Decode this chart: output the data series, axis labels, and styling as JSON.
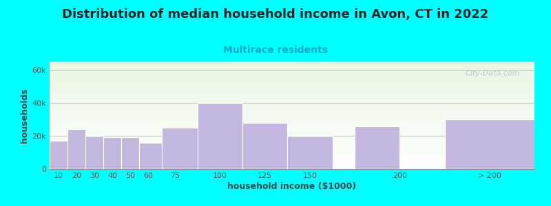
{
  "title": "Distribution of median household income in Avon, CT in 2022",
  "subtitle": "Multirace residents",
  "xlabel": "household income ($1000)",
  "ylabel": "households",
  "background_color": "#00FFFF",
  "plot_bg_gradient_top": "#e8f5e2",
  "plot_bg_gradient_bottom": "#ffffff",
  "bar_color": "#c5b8e0",
  "bar_edgecolor": "#ffffff",
  "categories": [
    "10",
    "20",
    "30",
    "40",
    "50",
    "60",
    "75",
    "100",
    "125",
    "150",
    "200",
    "> 200"
  ],
  "values": [
    17000,
    24000,
    20000,
    19000,
    19000,
    16000,
    25000,
    40000,
    28000,
    20000,
    26000,
    30000
  ],
  "bar_lefts": [
    5,
    15,
    25,
    35,
    45,
    55,
    67.5,
    87.5,
    112.5,
    137.5,
    175,
    225
  ],
  "bar_widths": [
    10,
    10,
    10,
    10,
    10,
    12.5,
    20,
    25,
    25,
    25,
    25,
    50
  ],
  "xtick_positions": [
    10,
    20,
    30,
    40,
    50,
    60,
    75,
    100,
    125,
    150,
    200,
    250
  ],
  "xtick_labels": [
    "10",
    "20",
    "30",
    "40",
    "50",
    "60",
    "75",
    "100",
    "125",
    "150",
    "200",
    "> 200"
  ],
  "yticks": [
    0,
    20000,
    40000,
    60000
  ],
  "ytick_labels": [
    "0",
    "20k",
    "40k",
    "60k"
  ],
  "xlim": [
    5,
    275
  ],
  "ylim": [
    0,
    65000
  ],
  "title_fontsize": 13,
  "subtitle_fontsize": 10,
  "axis_label_fontsize": 9,
  "tick_fontsize": 8,
  "watermark_text": "City-Data.com",
  "title_color": "#222222",
  "subtitle_color": "#00AACC",
  "axis_label_color": "#444444",
  "tick_color": "#555555",
  "grid_color": "#cccccc"
}
